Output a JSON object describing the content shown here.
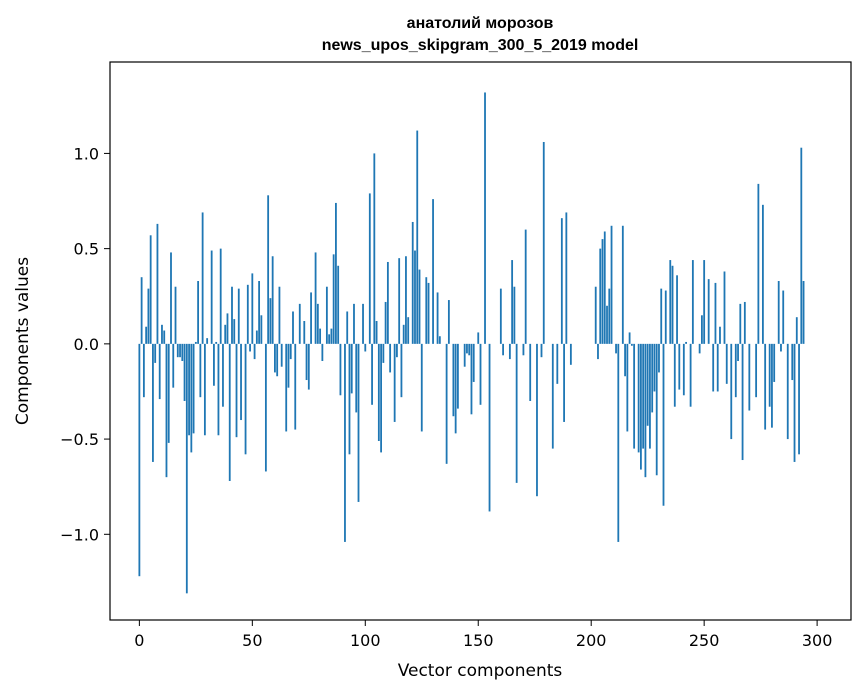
{
  "chart_data": {
    "type": "bar",
    "title": "анатолий морозов",
    "subtitle": "news_upos_skipgram_300_5_2019 model",
    "xlabel": "Vector components",
    "ylabel": "Components values",
    "xlim": [
      -13,
      315
    ],
    "ylim": [
      -1.45,
      1.48
    ],
    "xticks": [
      0,
      50,
      100,
      150,
      200,
      250,
      300
    ],
    "yticks": [
      -1.0,
      -0.5,
      0.0,
      0.5,
      1.0
    ],
    "xtick_labels": [
      "0",
      "50",
      "100",
      "150",
      "200",
      "250",
      "300"
    ],
    "ytick_labels": [
      "−1.0",
      "−0.5",
      "0.0",
      "0.5",
      "1.0"
    ],
    "bar_color": "#1f77b4",
    "grid": false,
    "values": [
      -1.22,
      0.35,
      -0.28,
      0.09,
      0.29,
      0.57,
      -0.62,
      -0.1,
      0.63,
      -0.29,
      0.1,
      0.07,
      -0.7,
      -0.52,
      0.48,
      -0.23,
      0.3,
      -0.07,
      -0.07,
      -0.09,
      -0.3,
      -1.31,
      -0.48,
      -0.57,
      -0.47,
      0.01,
      0.33,
      -0.28,
      0.69,
      -0.48,
      0.03,
      0.0,
      0.49,
      -0.22,
      0.01,
      -0.48,
      0.5,
      -0.33,
      0.1,
      0.16,
      -0.72,
      0.3,
      0.13,
      -0.49,
      0.29,
      -0.4,
      0.0,
      -0.58,
      0.31,
      -0.04,
      0.37,
      -0.08,
      0.07,
      0.33,
      0.15,
      0.0,
      -0.67,
      0.78,
      0.24,
      0.46,
      -0.15,
      -0.17,
      0.3,
      -0.12,
      0.0,
      -0.46,
      -0.23,
      -0.08,
      0.17,
      -0.45,
      0.0,
      0.21,
      0.0,
      0.12,
      -0.19,
      -0.24,
      0.27,
      0.0,
      0.48,
      0.21,
      0.08,
      -0.09,
      0.0,
      0.3,
      0.05,
      0.08,
      0.47,
      0.74,
      0.41,
      -0.27,
      0.0,
      -1.04,
      0.17,
      -0.58,
      -0.26,
      0.21,
      -0.36,
      -0.83,
      0.0,
      0.21,
      -0.04,
      0.0,
      0.79,
      -0.32,
      1.0,
      0.12,
      -0.51,
      -0.57,
      -0.1,
      0.22,
      0.43,
      -0.15,
      0.0,
      -0.41,
      -0.07,
      0.45,
      -0.28,
      0.1,
      0.46,
      0.14,
      0.0,
      0.64,
      0.49,
      1.12,
      0.39,
      -0.46,
      0.0,
      0.35,
      0.32,
      0.0,
      0.76,
      0.0,
      0.27,
      0.04,
      0.0,
      0.0,
      -0.63,
      0.23,
      0.0,
      -0.38,
      -0.47,
      -0.34,
      0.0,
      0.0,
      -0.12,
      -0.05,
      -0.06,
      -0.37,
      -0.2,
      0.0,
      0.06,
      -0.32,
      0.0,
      1.32,
      0.0,
      -0.88,
      0.0,
      0.0,
      0.0,
      0.0,
      0.29,
      -0.06,
      0.0,
      0.0,
      -0.08,
      0.44,
      0.3,
      -0.73,
      0.0,
      0.0,
      -0.06,
      0.6,
      0.0,
      -0.3,
      0.0,
      0.0,
      -0.8,
      0.0,
      -0.07,
      1.06,
      0.0,
      0.0,
      0.0,
      -0.55,
      0.0,
      -0.21,
      0.0,
      0.66,
      -0.41,
      0.69,
      0.0,
      -0.11,
      0.0,
      0.0,
      0.0,
      0.0,
      0.0,
      0.0,
      0.0,
      0.0,
      0.0,
      0.0,
      0.3,
      -0.08,
      0.5,
      0.55,
      0.59,
      0.2,
      0.29,
      0.62,
      0.0,
      -0.05,
      -1.04,
      0.0,
      0.62,
      -0.17,
      -0.46,
      0.06,
      -0.01,
      -0.55,
      0.0,
      -0.57,
      -0.66,
      -0.55,
      -0.7,
      -0.43,
      -0.55,
      -0.36,
      -0.25,
      -0.69,
      -0.15,
      0.29,
      -0.85,
      0.28,
      0.0,
      0.44,
      0.41,
      -0.33,
      0.36,
      -0.24,
      0.0,
      -0.27,
      0.01,
      0.0,
      -0.33,
      0.44,
      0.0,
      0.0,
      -0.05,
      0.15,
      0.44,
      0.0,
      0.34,
      0.0,
      -0.25,
      0.32,
      -0.25,
      0.09,
      0.0,
      0.38,
      -0.21,
      0.0,
      -0.5,
      0.0,
      -0.28,
      -0.09,
      0.21,
      -0.61,
      0.22,
      0.0,
      -0.35,
      0.0,
      0.0,
      -0.28,
      0.84,
      0.0,
      0.73,
      -0.45,
      0.0,
      -0.33,
      -0.44,
      -0.2,
      0.0,
      0.33,
      -0.04,
      0.28,
      0.0,
      -0.5,
      0.0,
      -0.19,
      -0.62,
      0.14,
      -0.58,
      1.03,
      0.33
    ]
  }
}
